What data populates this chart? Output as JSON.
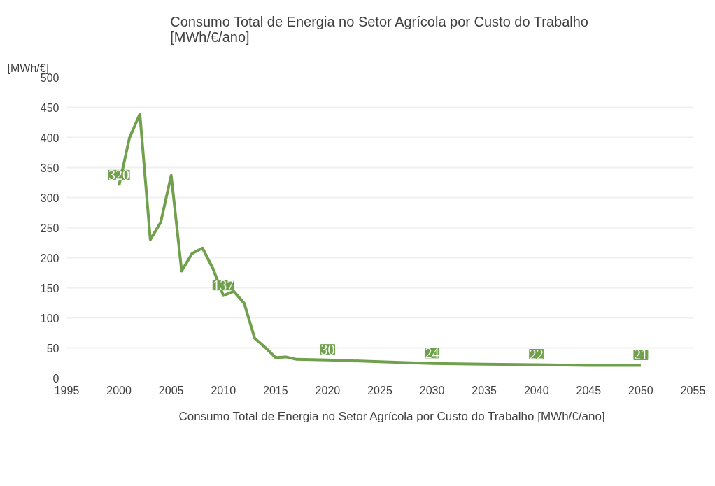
{
  "chart_data": {
    "type": "line",
    "title": "Consumo Total de Energia no Setor Agrícola por Custo do Trabalho [MWh/€/ano]",
    "ylabel": "[MWh/€]",
    "x": [
      2000,
      2001,
      2002,
      2003,
      2004,
      2005,
      2006,
      2007,
      2008,
      2009,
      2010,
      2011,
      2012,
      2013,
      2014,
      2015,
      2016,
      2017,
      2020,
      2025,
      2030,
      2035,
      2040,
      2045,
      2050
    ],
    "series": [
      {
        "name": "Consumo Total de Energia no Setor Agrícola por Custo do Trabalho [MWh/€/ano]",
        "color": "#70a04c",
        "values": [
          320,
          399,
          439,
          230,
          259,
          337,
          178,
          207,
          216,
          182,
          137,
          144,
          124,
          66,
          51,
          34,
          35,
          31,
          30,
          27,
          24,
          23,
          22,
          21,
          21
        ],
        "value_labels": [
          "320",
          null,
          null,
          null,
          null,
          null,
          null,
          null,
          null,
          null,
          "137",
          null,
          null,
          null,
          null,
          null,
          null,
          null,
          "30",
          null,
          "24",
          null,
          "22",
          null,
          "21"
        ]
      }
    ],
    "xlim": [
      1995,
      2055
    ],
    "xticks": [
      1995,
      2000,
      2005,
      2010,
      2015,
      2020,
      2025,
      2030,
      2035,
      2040,
      2045,
      2050,
      2055
    ],
    "ylim": [
      0,
      500
    ],
    "yticks": [
      0,
      50,
      100,
      150,
      200,
      250,
      300,
      350,
      400,
      450,
      500
    ],
    "grid": "y",
    "legend": "bottom",
    "marker": "none",
    "line_style": "solid"
  }
}
